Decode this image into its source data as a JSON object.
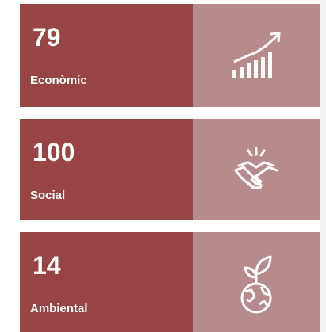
{
  "cards": [
    {
      "value": 79,
      "label": "Econòmic"
    },
    {
      "value": 100,
      "label": "Social"
    },
    {
      "value": 14,
      "label": "Ambiental"
    }
  ]
}
